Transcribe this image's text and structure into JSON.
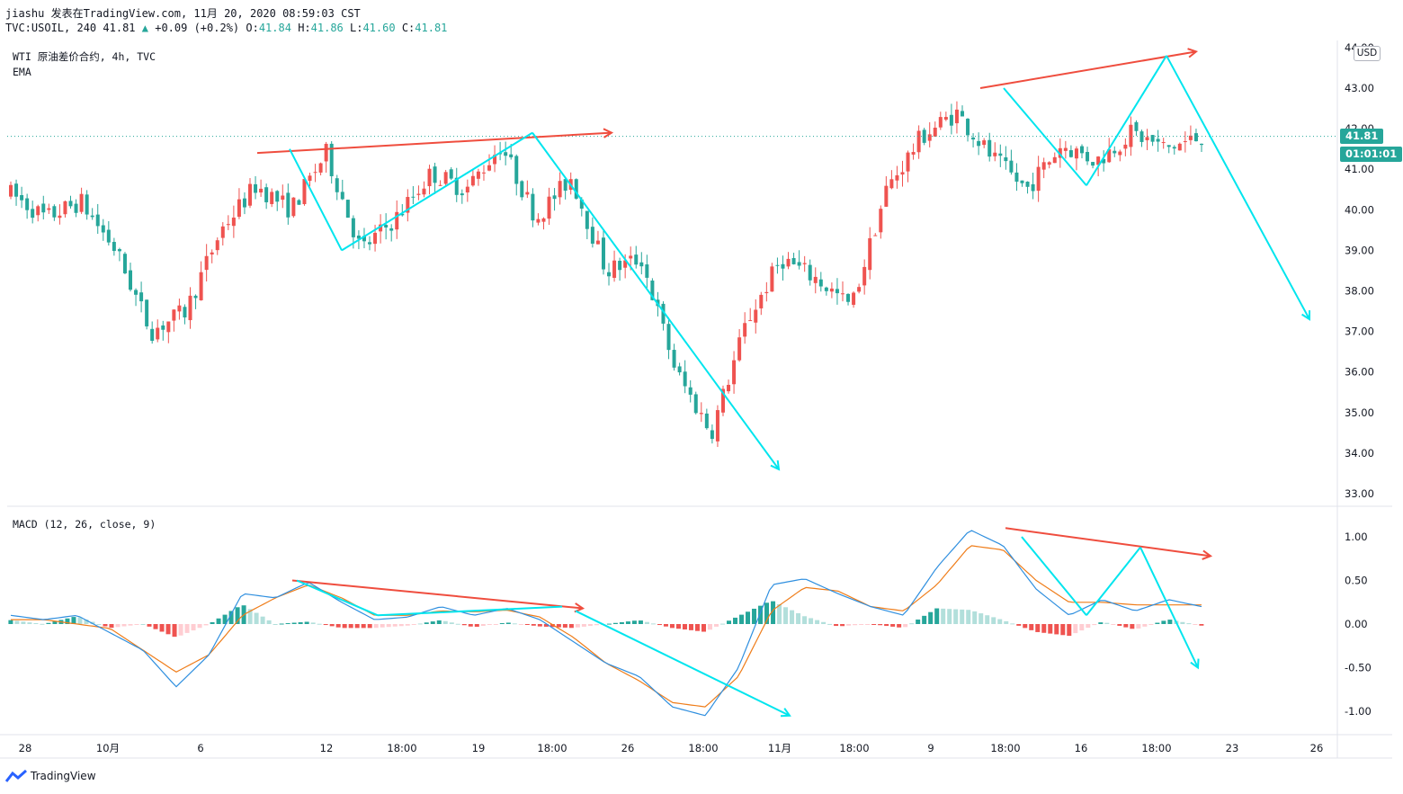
{
  "header": {
    "line1": "jiashu 发表在TradingView.com, 11月 20, 2020 08:59:03 CST",
    "symbol": "TVC:USOIL, 240",
    "last": "41.81",
    "change": "+0.09 (+0.2%)",
    "o_label": "O:",
    "o_value": "41.84",
    "h_label": "H:",
    "h_value": "41.86",
    "l_label": "L:",
    "l_value": "41.60",
    "c_label": "C:",
    "c_value": "41.81"
  },
  "legend": {
    "title": "WTI 原油差价合约, 4h, TVC",
    "ema": "EMA",
    "macd": "MACD (12, 26, close, 9)"
  },
  "axis": {
    "currency": "USD",
    "price_badge": "41.81",
    "time_badge": "01:01:01"
  },
  "brand": "TradingView",
  "colors": {
    "up": "#ef5350",
    "down": "#26a69a",
    "pattern": "#00e5ee",
    "trend": "#ef4d3e",
    "macd_line": "#2f8fdf",
    "signal_line": "#ef7d1a"
  },
  "chart_data": [
    {
      "type": "candlestick",
      "title": "WTI 原油差价合约, 4h, TVC",
      "ylabel": "USD",
      "ylim": [
        32.5,
        44
      ],
      "y_ticks": [
        "33.00",
        "34.00",
        "35.00",
        "36.00",
        "37.00",
        "38.00",
        "39.00",
        "40.00",
        "41.00",
        "42.00",
        "43.00",
        "44.00"
      ],
      "x_ticks": [
        "28",
        "10月",
        "6",
        "12",
        "18:00",
        "19",
        "18:00",
        "26",
        "18:00",
        "11月",
        "18:00",
        "9",
        "18:00",
        "16",
        "18:00",
        "23",
        "26"
      ],
      "key_path": [
        40.4,
        39.8,
        40.2,
        39.0,
        37.0,
        37.5,
        39.5,
        40.6,
        40.0,
        41.4,
        39.0,
        39.8,
        40.9,
        40.5,
        41.6,
        39.8,
        40.8,
        38.5,
        38.8,
        36.0,
        34.5,
        37.2,
        38.8,
        38.3,
        37.6,
        40.5,
        41.8,
        42.4,
        41.3,
        40.5,
        41.6,
        41.2,
        41.9,
        41.5,
        41.8
      ],
      "last_price": 41.81,
      "pattern_lines": [
        [
          41.5,
          39.0
        ],
        [
          39.0,
          41.9
        ],
        [
          41.9,
          33.6
        ],
        [
          43.0,
          40.6
        ],
        [
          40.6,
          43.8
        ],
        [
          43.8,
          37.3
        ]
      ],
      "trend_lines": [
        [
          41.4,
          41.9
        ],
        [
          43.0,
          43.9
        ]
      ]
    },
    {
      "type": "macd",
      "title": "MACD (12, 26, close, 9)",
      "ylim": [
        -1.2,
        1.25
      ],
      "y_ticks": [
        "1.00",
        "0.50",
        "0.00",
        "-0.50",
        "-1.00"
      ],
      "macd_path": [
        0.1,
        0.05,
        0.1,
        -0.1,
        -0.3,
        -0.72,
        -0.35,
        0.35,
        0.3,
        0.48,
        0.25,
        0.05,
        0.08,
        0.2,
        0.1,
        0.18,
        0.05,
        -0.2,
        -0.45,
        -0.6,
        -0.95,
        -1.05,
        -0.5,
        0.45,
        0.52,
        0.35,
        0.2,
        0.1,
        0.65,
        1.08,
        0.9,
        0.4,
        0.1,
        0.28,
        0.15,
        0.28,
        0.2
      ],
      "signal_path": [
        0.05,
        0.05,
        0.0,
        -0.05,
        -0.3,
        -0.55,
        -0.35,
        0.1,
        0.3,
        0.45,
        0.3,
        0.1,
        0.1,
        0.15,
        0.14,
        0.16,
        0.08,
        -0.15,
        -0.45,
        -0.65,
        -0.9,
        -0.95,
        -0.6,
        0.15,
        0.42,
        0.38,
        0.2,
        0.15,
        0.45,
        0.9,
        0.85,
        0.5,
        0.25,
        0.25,
        0.22,
        0.22,
        0.22
      ],
      "trend_lines": [
        [
          0.5,
          0.18
        ],
        [
          1.1,
          0.78
        ]
      ],
      "pattern_lines": [
        [
          0.5,
          0.1
        ],
        [
          0.15,
          -1.05
        ],
        [
          1.0,
          0.1
        ],
        [
          0.1,
          0.88
        ],
        [
          0.88,
          -0.5
        ]
      ]
    }
  ]
}
